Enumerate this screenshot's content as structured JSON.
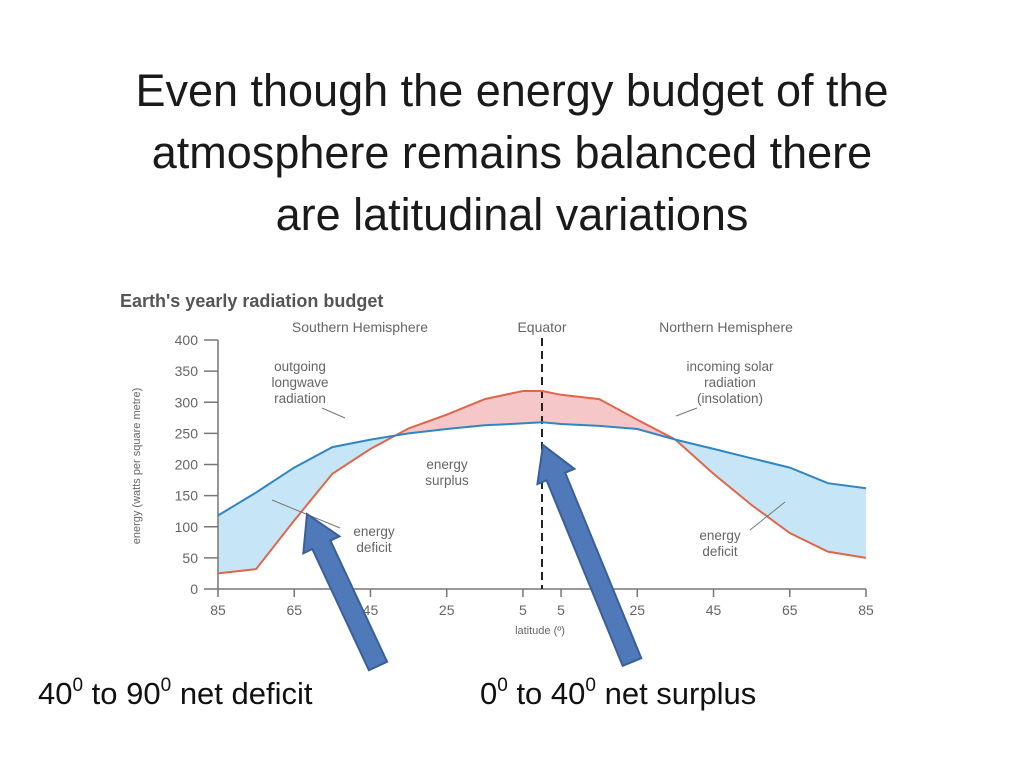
{
  "slide": {
    "title_lines": [
      "Even though the energy budget of the",
      "atmosphere remains balanced there",
      "are latitudinal variations"
    ],
    "caption_left": {
      "lead": "40",
      "sup1": "0",
      "mid": " to 90",
      "sup2": "0",
      "tail": " net deficit"
    },
    "caption_right": {
      "lead": "0",
      "sup1": "0",
      "mid": " to 40",
      "sup2": "0",
      "tail": " net surplus"
    }
  },
  "colors": {
    "incoming_line": "#e0664a",
    "outgoing_line": "#2f86c4",
    "surplus_fill": "#f6c7c9",
    "deficit_fill": "#c6e6f7",
    "arrow_fill": "#4f79b9",
    "arrow_stroke": "#3a5f9a",
    "axis": "#777777"
  },
  "chart_data": {
    "type": "line",
    "title": "Earth's yearly radiation budget",
    "hemisphere_labels": [
      "Southern Hemisphere",
      "Equator",
      "Northern Hemisphere"
    ],
    "xlabel": "latitude (º)",
    "ylabel": "energy (watts per square metre)",
    "x_tick_labels": [
      "85",
      "65",
      "45",
      "25",
      "5",
      "5",
      "25",
      "45",
      "65",
      "85"
    ],
    "y_ticks": [
      0,
      50,
      100,
      150,
      200,
      250,
      300,
      350,
      400
    ],
    "ylim": [
      0,
      400
    ],
    "x": [
      -85,
      -75,
      -65,
      -55,
      -45,
      -35,
      -25,
      -15,
      -5,
      0,
      5,
      15,
      25,
      35,
      45,
      55,
      65,
      75,
      85
    ],
    "series": [
      {
        "name": "incoming solar radiation (insolation)",
        "values": [
          25,
          32,
          110,
          185,
          225,
          258,
          280,
          305,
          318,
          318,
          312,
          305,
          272,
          240,
          185,
          135,
          90,
          60,
          50
        ]
      },
      {
        "name": "outgoing longwave radiation",
        "values": [
          118,
          155,
          195,
          228,
          240,
          250,
          257,
          263,
          266,
          268,
          265,
          262,
          257,
          240,
          225,
          210,
          195,
          170,
          162
        ]
      }
    ],
    "annotations": [
      {
        "label": "outgoing longwave radiation",
        "lines": [
          "outgoing",
          "longwave",
          "radiation"
        ]
      },
      {
        "label": "incoming solar radiation (insolation)",
        "lines": [
          "incoming solar",
          "radiation",
          "(insolation)"
        ]
      },
      {
        "label": "energy surplus",
        "lines": [
          "energy",
          "surplus"
        ]
      },
      {
        "label": "energy deficit",
        "lines": [
          "energy",
          "deficit"
        ]
      },
      {
        "label": "energy deficit",
        "lines": [
          "energy",
          "deficit"
        ]
      }
    ]
  }
}
